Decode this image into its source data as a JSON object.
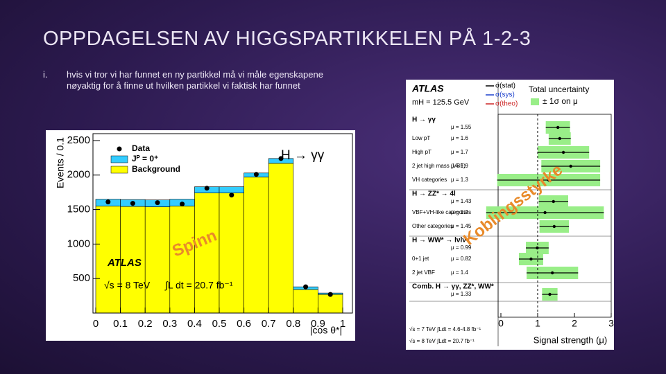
{
  "slide": {
    "title": "OPPDAGELSEN AV HIGGSPARTIKKELEN PÅ 1-2-3",
    "bullet": {
      "marker": "i.",
      "text": "hvis vi tror vi har funnet en ny partikkel må vi måle egenskapene nøyaktig for å finne ut hvilken partikkel vi faktisk har funnet"
    },
    "overlays": [
      "Spinn",
      "Koblingsstyrke"
    ]
  },
  "chart_data": [
    {
      "type": "histogram",
      "title": "H → γγ",
      "experiment": "ATLAS",
      "annotations": [
        "√s = 8 TeV",
        "∫L dt = 20.7 fb⁻¹"
      ],
      "x_label": "|cos θ*|",
      "y_label": "Events / 0.1",
      "bins": [
        0,
        0.1,
        0.2,
        0.3,
        0.4,
        0.5,
        0.6,
        0.7,
        0.8,
        0.9,
        1
      ],
      "series": [
        {
          "name": "Background",
          "color": "#ffff00",
          "values": [
            1550,
            1545,
            1540,
            1550,
            1740,
            1740,
            1970,
            2170,
            340,
            270
          ]
        },
        {
          "name": "Jᴾ = 0⁺",
          "color": "#33ccff",
          "values": [
            100,
            100,
            100,
            100,
            90,
            90,
            60,
            70,
            40,
            20
          ]
        },
        {
          "name": "Data",
          "color": "#000000",
          "values": [
            1610,
            1590,
            1600,
            1580,
            1810,
            1710,
            2010,
            2240,
            380,
            270
          ]
        }
      ],
      "xlim": [
        0,
        1
      ],
      "ylim": [
        0,
        2600
      ],
      "xticks": [
        0,
        0.1,
        0.2,
        0.3,
        0.4,
        0.5,
        0.6,
        0.7,
        0.8,
        0.9,
        1
      ],
      "yticks": [
        500,
        1000,
        1500,
        2000,
        2500
      ]
    },
    {
      "type": "forest",
      "experiment": "ATLAS",
      "subtitle": "mH = 125.5 GeV",
      "legend": [
        {
          "name": "σ(stat)",
          "color": "#000000"
        },
        {
          "name": "σ(sys)",
          "color": "#1a3fcc"
        },
        {
          "name": "σ(theo)",
          "color": "#cc2222"
        }
      ],
      "band_title": "Total uncertainty",
      "band_label": "± 1σ on μ",
      "band_color": "#99ee88",
      "x_label": "Signal strength (μ)",
      "footnotes": [
        "√s = 7 TeV ∫Ldt = 4.6-4.8 fb⁻¹",
        "√s = 8 TeV ∫Ldt = 20.7 fb⁻¹"
      ],
      "xlim": [
        0,
        3
      ],
      "xticks": [
        0,
        1,
        2,
        3
      ],
      "groups": [
        {
          "name": "H → γγ",
          "value": 1.55,
          "error": 0.33,
          "value_label": "μ = 1.55",
          "rows": [
            {
              "name": "Low pT",
              "value": 1.6,
              "error": 0.3,
              "value_label": "μ = 1.6"
            },
            {
              "name": "High pT",
              "value": 1.7,
              "error": 0.7,
              "value_label": "μ = 1.7"
            },
            {
              "name": "2 jet high mass (VBF)",
              "value": 1.9,
              "error": 0.8,
              "value_label": "μ = 1.9"
            },
            {
              "name": "VH categories",
              "value": 1.3,
              "error": 1.4,
              "value_label": "μ = 1.3"
            }
          ]
        },
        {
          "name": "H → ZZ* → 4l",
          "value": 1.43,
          "error": 0.4,
          "value_label": "μ = 1.43",
          "rows": [
            {
              "name": "VBF+VH-like categories",
              "value": 1.2,
              "error": 1.6,
              "value_label": "μ = 1.2"
            },
            {
              "name": "Other categories",
              "value": 1.45,
              "error": 0.4,
              "value_label": "μ = 1.45"
            }
          ]
        },
        {
          "name": "H → WW* → lνlν",
          "value": 0.99,
          "error": 0.31,
          "value_label": "μ = 0.99",
          "rows": [
            {
              "name": "0+1 jet",
              "value": 0.82,
              "error": 0.33,
              "value_label": "μ = 0.82"
            },
            {
              "name": "2 jet VBF",
              "value": 1.4,
              "error": 0.7,
              "value_label": "μ = 1.4"
            }
          ]
        },
        {
          "name": "Comb. H → γγ, ZZ*, WW*",
          "value": 1.33,
          "error": 0.21,
          "value_label": "μ = 1.33",
          "rows": []
        }
      ]
    }
  ]
}
